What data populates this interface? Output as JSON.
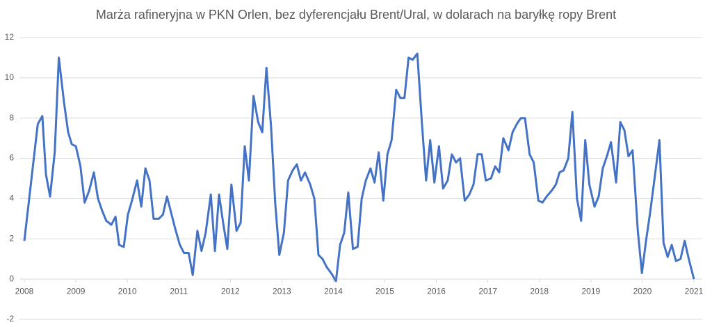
{
  "chart_data": {
    "type": "line",
    "title": "Marża rafineryjna w PKN Orlen, bez dyferencjału Brent/Ural, w dolarach na baryłkę ropy Brent",
    "xlim": [
      2008,
      2021
    ],
    "xticks": [
      2008,
      2009,
      2010,
      2011,
      2012,
      2013,
      2014,
      2015,
      2016,
      2017,
      2018,
      2019,
      2020,
      2021
    ],
    "ylim": [
      -2,
      12
    ],
    "yticks": [
      -2,
      0,
      2,
      4,
      6,
      8,
      10,
      12
    ],
    "grid": true,
    "series": [
      {
        "color": "#4472c4",
        "x": [
          2008.0,
          2008.26,
          2008.35,
          2008.42,
          2008.5,
          2008.59,
          2008.67,
          2008.77,
          2008.85,
          2008.92,
          2009.0,
          2009.09,
          2009.17,
          2009.26,
          2009.35,
          2009.43,
          2009.51,
          2009.59,
          2009.69,
          2009.77,
          2009.84,
          2009.93,
          2010.01,
          2010.09,
          2010.19,
          2010.27,
          2010.35,
          2010.43,
          2010.51,
          2010.61,
          2010.69,
          2010.77,
          2010.85,
          2010.93,
          2011.02,
          2011.1,
          2011.19,
          2011.27,
          2011.36,
          2011.44,
          2011.52,
          2011.62,
          2011.7,
          2011.78,
          2011.86,
          2011.94,
          2012.02,
          2012.12,
          2012.2,
          2012.28,
          2012.36,
          2012.45,
          2012.54,
          2012.62,
          2012.7,
          2012.79,
          2012.87,
          2012.95,
          2013.04,
          2013.12,
          2013.21,
          2013.29,
          2013.37,
          2013.45,
          2013.55,
          2013.63,
          2013.71,
          2013.79,
          2013.87,
          2013.97,
          2014.05,
          2014.13,
          2014.21,
          2014.29,
          2014.38,
          2014.47,
          2014.55,
          2014.63,
          2014.72,
          2014.8,
          2014.88,
          2014.97,
          2015.05,
          2015.13,
          2015.22,
          2015.3,
          2015.38,
          2015.46,
          2015.54,
          2015.63,
          2015.72,
          2015.8,
          2015.88,
          2015.96,
          2016.05,
          2016.13,
          2016.22,
          2016.3,
          2016.38,
          2016.46,
          2016.55,
          2016.64,
          2016.72,
          2016.8,
          2016.88,
          2016.96,
          2017.06,
          2017.14,
          2017.22,
          2017.3,
          2017.4,
          2017.48,
          2017.56,
          2017.64,
          2017.72,
          2017.81,
          2017.89,
          2017.98,
          2018.06,
          2018.14,
          2018.24,
          2018.32,
          2018.39,
          2018.47,
          2018.56,
          2018.64,
          2018.73,
          2018.81,
          2018.89,
          2018.97,
          2019.07,
          2019.15,
          2019.23,
          2019.31,
          2019.39,
          2019.49,
          2019.57,
          2019.65,
          2019.73,
          2019.81,
          2019.91,
          2019.99,
          2020.07,
          2020.15,
          2020.23,
          2020.33,
          2020.41,
          2020.49,
          2020.57,
          2020.65,
          2020.74,
          2020.82,
          2020.9,
          2021.0
        ],
        "values": [
          1.9,
          7.7,
          8.1,
          5.2,
          4.1,
          6.3,
          11.0,
          8.8,
          7.3,
          6.7,
          6.6,
          5.6,
          3.8,
          4.4,
          5.3,
          4.0,
          3.4,
          2.9,
          2.7,
          3.1,
          1.7,
          1.6,
          3.2,
          3.9,
          4.9,
          3.6,
          5.5,
          4.9,
          3.0,
          3.0,
          3.2,
          4.1,
          3.3,
          2.5,
          1.7,
          1.3,
          1.3,
          0.2,
          2.4,
          1.4,
          2.3,
          4.2,
          1.4,
          4.2,
          2.8,
          1.5,
          4.7,
          2.4,
          2.8,
          6.6,
          4.9,
          9.1,
          7.8,
          7.3,
          10.5,
          7.6,
          3.8,
          1.2,
          2.3,
          4.9,
          5.4,
          5.7,
          4.9,
          5.3,
          4.7,
          4.0,
          1.2,
          1.0,
          0.6,
          0.25,
          -0.1,
          1.7,
          2.3,
          4.3,
          1.5,
          1.6,
          4.0,
          4.9,
          5.5,
          4.8,
          6.3,
          3.9,
          6.2,
          6.9,
          9.4,
          9.0,
          9.0,
          11.0,
          10.9,
          11.2,
          7.7,
          4.9,
          6.9,
          4.8,
          6.6,
          4.5,
          4.9,
          6.2,
          5.8,
          6.0,
          3.9,
          4.2,
          4.7,
          6.2,
          6.2,
          4.9,
          5.0,
          5.6,
          5.3,
          7.0,
          6.4,
          7.3,
          7.7,
          8.0,
          8.0,
          6.2,
          5.8,
          3.9,
          3.8,
          4.1,
          4.4,
          4.7,
          5.3,
          5.4,
          6.0,
          8.3,
          4.0,
          2.9,
          6.9,
          4.7,
          3.6,
          4.1,
          5.5,
          6.1,
          6.8,
          4.8,
          7.8,
          7.4,
          6.1,
          6.4,
          2.4,
          0.3,
          1.9,
          3.3,
          4.9,
          6.9,
          1.8,
          1.1,
          1.7,
          0.9,
          1.0,
          1.9,
          1.0,
          0.0
        ]
      }
    ]
  }
}
